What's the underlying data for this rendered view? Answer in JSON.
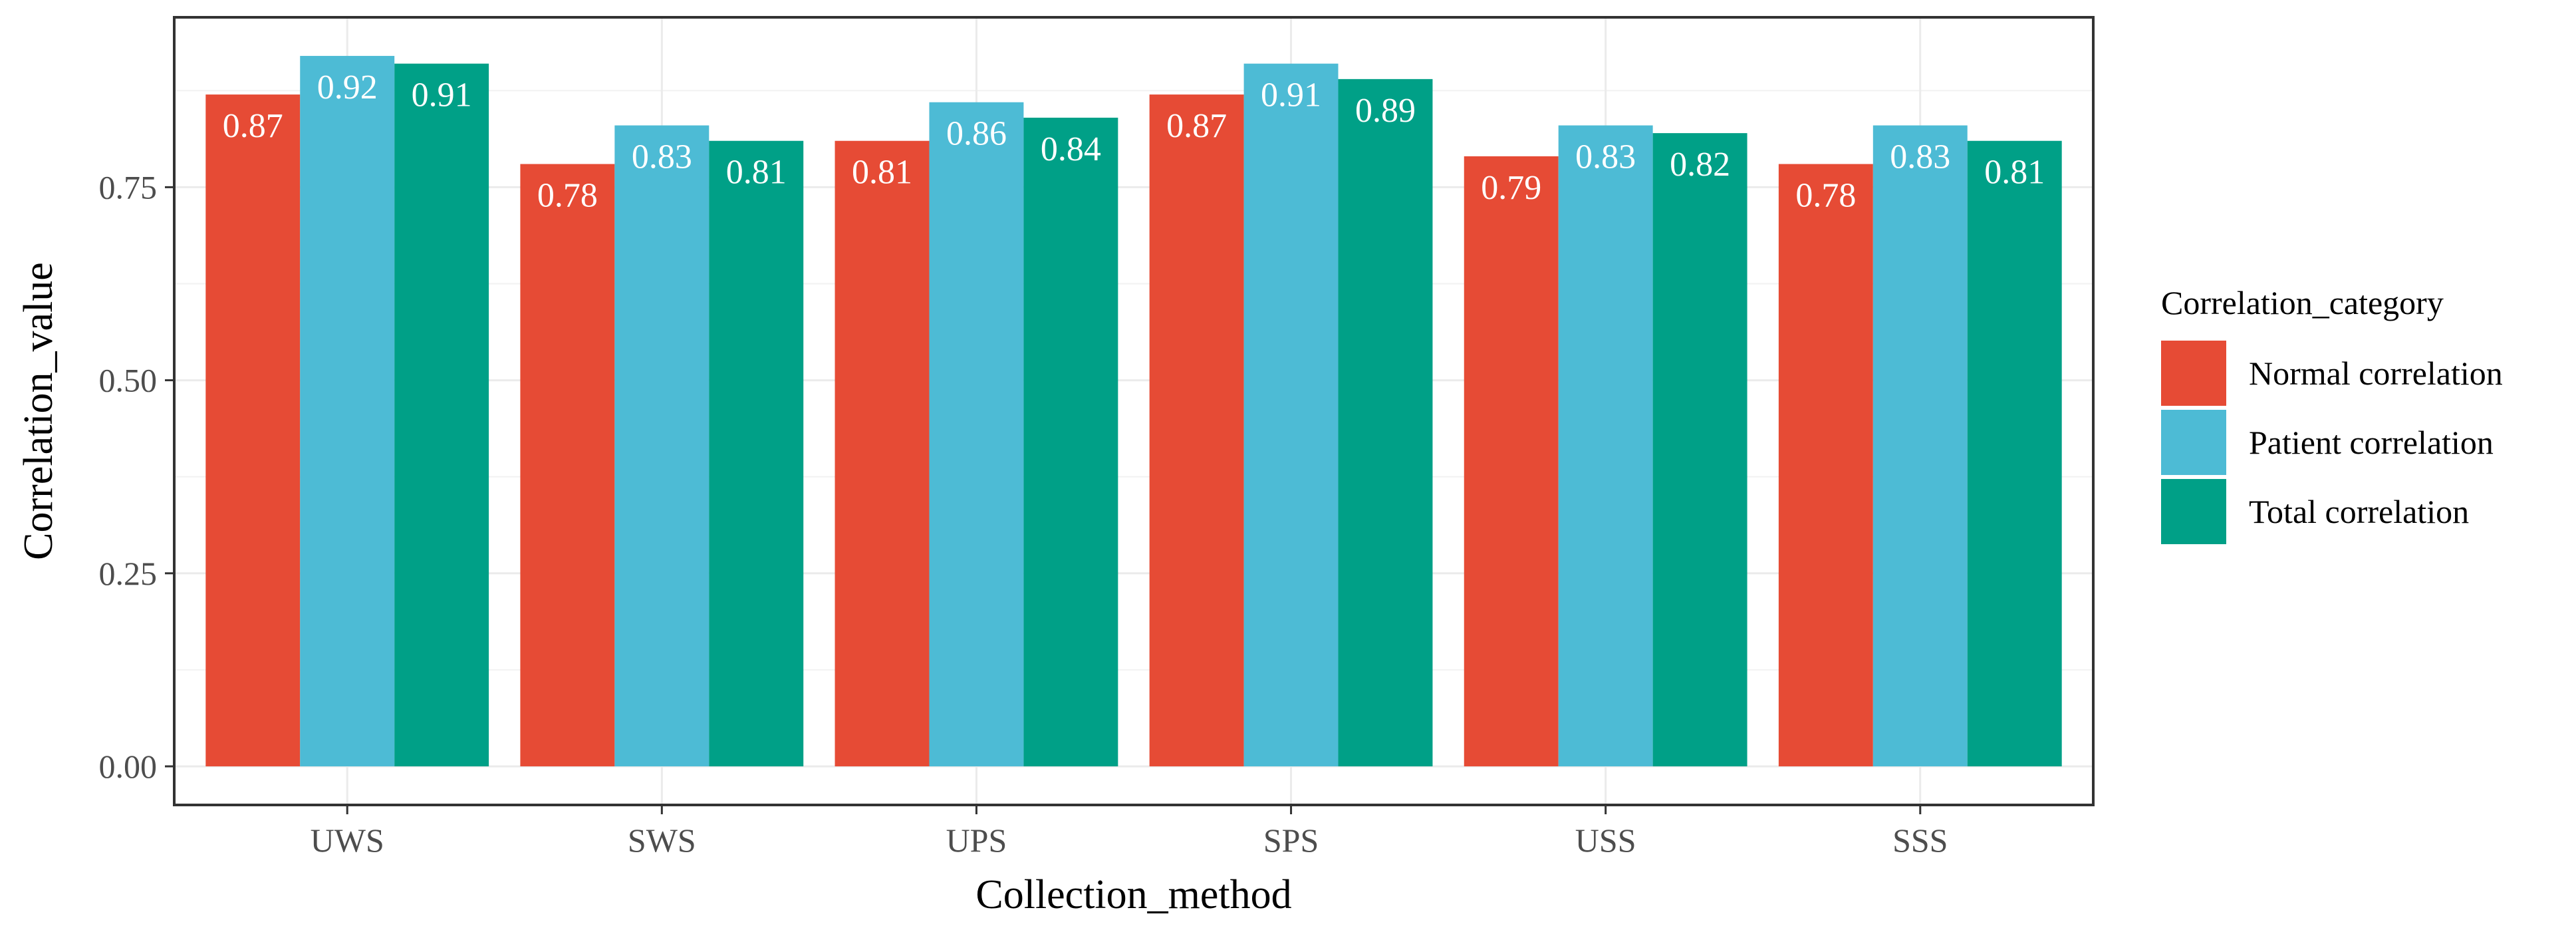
{
  "chart_data": {
    "type": "bar",
    "xlabel": "Collection_method",
    "ylabel": "Correlation_value",
    "categories": [
      "UWS",
      "SWS",
      "UPS",
      "SPS",
      "USS",
      "SSS"
    ],
    "series": [
      {
        "name": "Normal correlation",
        "color": "#E64B35",
        "values": [
          0.87,
          0.78,
          0.81,
          0.87,
          0.79,
          0.78
        ],
        "labels": [
          "0.87",
          "0.78",
          "0.81",
          "0.87",
          "0.79",
          "0.78"
        ]
      },
      {
        "name": "Patient correlation",
        "color": "#4DBBD5",
        "values": [
          0.92,
          0.83,
          0.86,
          0.91,
          0.83,
          0.83
        ],
        "labels": [
          "0.92",
          "0.83",
          "0.86",
          "0.91",
          "0.83",
          "0.83"
        ]
      },
      {
        "name": "Total correlation",
        "color": "#00A087",
        "values": [
          0.91,
          0.81,
          0.84,
          0.89,
          0.82,
          0.81
        ],
        "labels": [
          "0.91",
          "0.81",
          "0.84",
          "0.89",
          "0.82",
          "0.81"
        ]
      }
    ],
    "ylim": [
      -0.05,
      0.97
    ],
    "yticks": [
      0.0,
      0.25,
      0.5,
      0.75
    ],
    "ytick_labels": [
      "0.00",
      "0.25",
      "0.50",
      "0.75"
    ],
    "grid": true,
    "legend": {
      "title": "Correlation_category",
      "position": "right"
    }
  }
}
